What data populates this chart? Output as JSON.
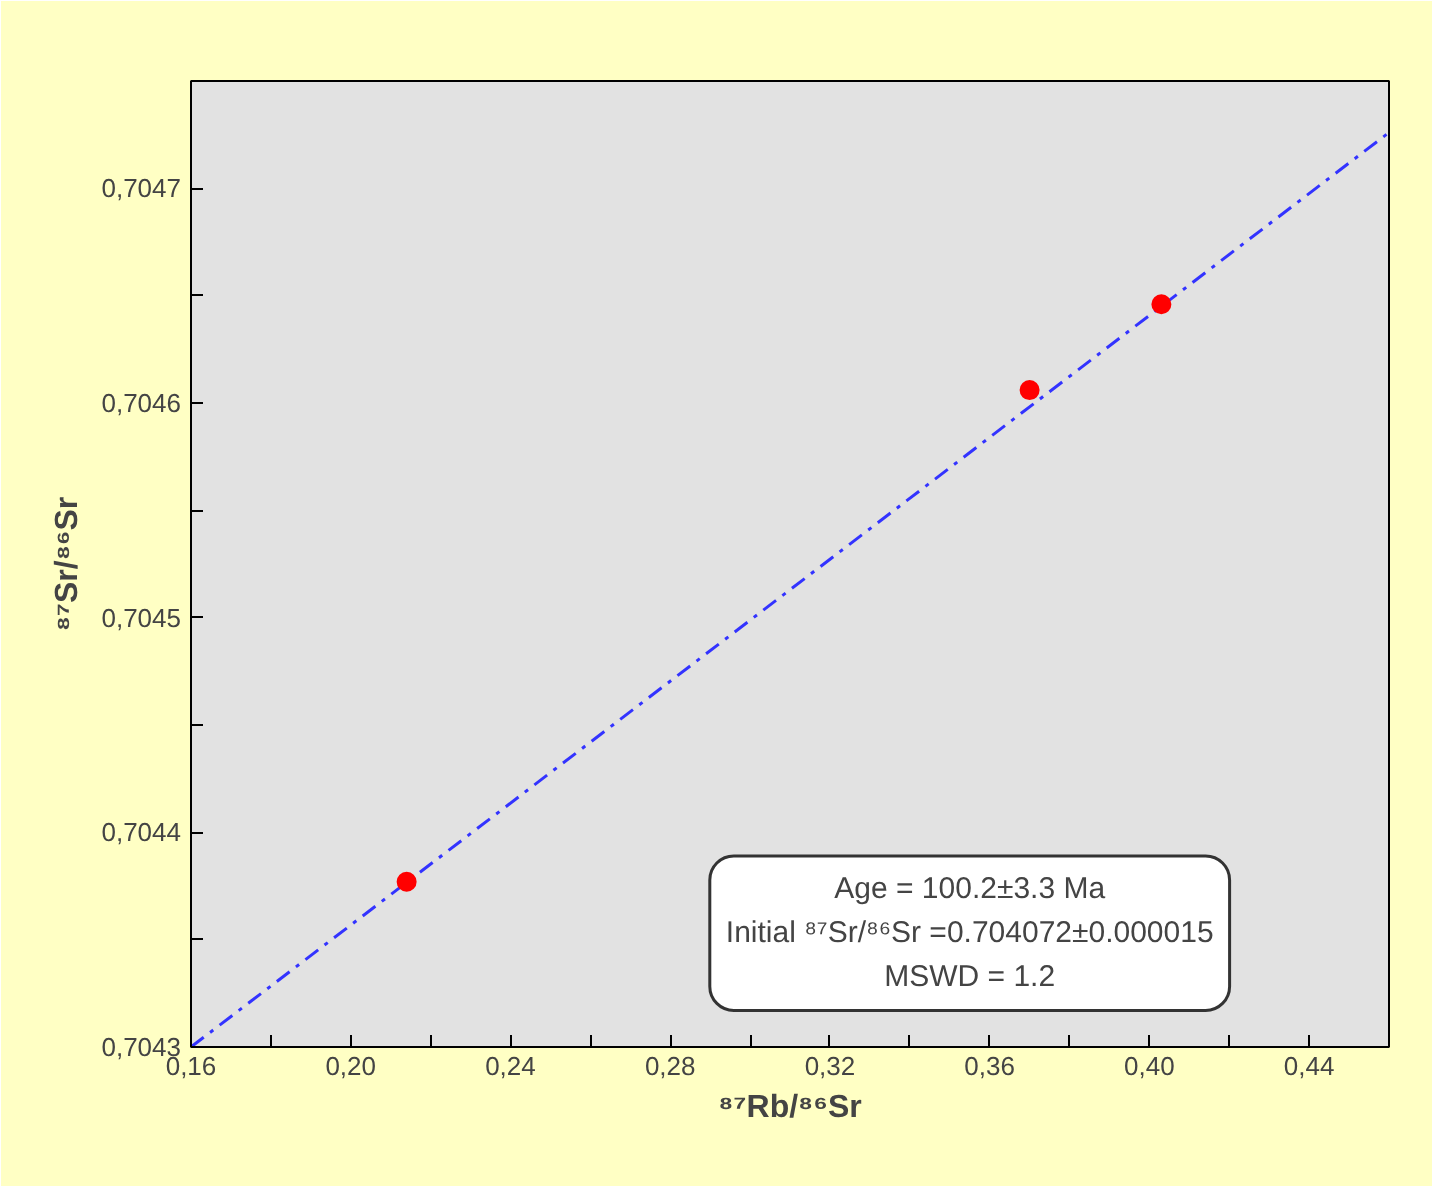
{
  "chart_data": {
    "type": "scatter",
    "xlabel": "⁸⁷Rb/⁸⁶Sr",
    "ylabel": "⁸⁷Sr/⁸⁶Sr",
    "xlim": [
      0.16,
      0.46
    ],
    "xticks": [
      {
        "value": 0.16,
        "label": "0,16"
      },
      {
        "value": 0.18,
        "label": null
      },
      {
        "value": 0.2,
        "label": "0,20"
      },
      {
        "value": 0.22,
        "label": null
      },
      {
        "value": 0.24,
        "label": "0,24"
      },
      {
        "value": 0.26,
        "label": null
      },
      {
        "value": 0.28,
        "label": "0,28"
      },
      {
        "value": 0.3,
        "label": null
      },
      {
        "value": 0.32,
        "label": "0,32"
      },
      {
        "value": 0.34,
        "label": null
      },
      {
        "value": 0.36,
        "label": "0,36"
      },
      {
        "value": 0.38,
        "label": null
      },
      {
        "value": 0.4,
        "label": "0,40"
      },
      {
        "value": 0.42,
        "label": null
      },
      {
        "value": 0.44,
        "label": "0,44"
      }
    ],
    "ylim": [
      0.7043,
      0.70475
    ],
    "yticks": [
      {
        "value": 0.7043,
        "label": "0,7043"
      },
      {
        "value": 0.70435,
        "label": null
      },
      {
        "value": 0.7044,
        "label": "0,7044"
      },
      {
        "value": 0.70445,
        "label": null
      },
      {
        "value": 0.7045,
        "label": "0,7045"
      },
      {
        "value": 0.70455,
        "label": null
      },
      {
        "value": 0.7046,
        "label": "0,7046"
      },
      {
        "value": 0.70465,
        "label": null
      },
      {
        "value": 0.7047,
        "label": "0,7047"
      }
    ],
    "grid": false,
    "marker": "circle",
    "series": [
      {
        "type": "line",
        "color": "#3333ff",
        "line_style": "dashed",
        "marker": "none",
        "x": [
          0.16,
          0.46
        ],
        "values": [
          0.7043,
          0.704726
        ]
      },
      {
        "color": "#ff0000",
        "x": [
          0.214,
          0.37,
          0.403
        ],
        "values": [
          0.704377,
          0.704606,
          0.704646
        ]
      }
    ],
    "annotations": [
      "Age = 100.2±3.3 Ma",
      "Initial ⁸⁷Sr/⁸⁶Sr =0.704072±0.000015",
      "MSWD = 1.2"
    ]
  }
}
